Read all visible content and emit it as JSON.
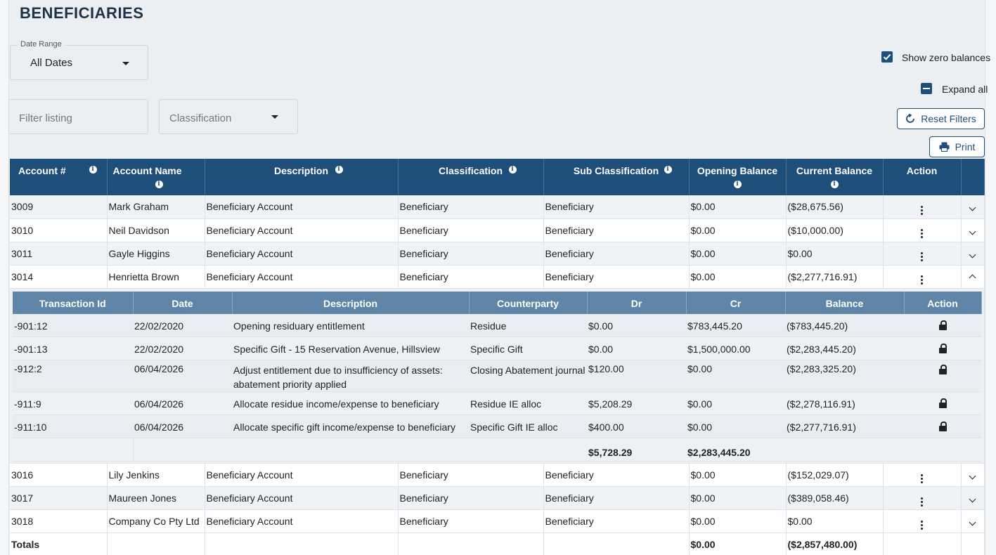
{
  "page": {
    "title": "BENEFICIARIES"
  },
  "filters": {
    "date_range_label": "Date Range",
    "date_range_value": "All Dates",
    "filter_placeholder": "Filter listing",
    "classification_placeholder": "Classification",
    "show_zero_balances": "Show zero balances",
    "expand_all": "Expand all",
    "reset_filters": "Reset Filters",
    "print": "Print"
  },
  "columns": [
    "Account #",
    "Account Name",
    "Description",
    "Classification",
    "Sub Classification",
    "Opening Balance",
    "Current Balance",
    "Action"
  ],
  "rows": [
    {
      "account": "3009",
      "name": "Mark Graham",
      "description": "Beneficiary Account",
      "classification": "Beneficiary",
      "sub": "Beneficiary",
      "opening": "$0.00",
      "current": "($28,675.56)"
    },
    {
      "account": "3010",
      "name": "Neil Davidson",
      "description": "Beneficiary Account",
      "classification": "Beneficiary",
      "sub": "Beneficiary",
      "opening": "$0.00",
      "current": "($10,000.00)"
    },
    {
      "account": "3011",
      "name": "Gayle Higgins",
      "description": "Beneficiary Account",
      "classification": "Beneficiary",
      "sub": "Beneficiary",
      "opening": "$0.00",
      "current": "$0.00"
    },
    {
      "account": "3014",
      "name": "Henrietta Brown",
      "description": "Beneficiary Account",
      "classification": "Beneficiary",
      "sub": "Beneficiary",
      "opening": "$0.00",
      "current": "($2,277,716.91)"
    },
    {
      "account": "3016",
      "name": "Lily Jenkins",
      "description": "Beneficiary Account",
      "classification": "Beneficiary",
      "sub": "Beneficiary",
      "opening": "$0.00",
      "current": "($152,029.07)"
    },
    {
      "account": "3017",
      "name": "Maureen Jones",
      "description": "Beneficiary Account",
      "classification": "Beneficiary",
      "sub": "Beneficiary",
      "opening": "$0.00",
      "current": "($389,058.46)"
    },
    {
      "account": "3018",
      "name": "Company Co Pty Ltd",
      "description": "Beneficiary Account",
      "classification": "Beneficiary",
      "sub": "Beneficiary",
      "opening": "$0.00",
      "current": "$0.00"
    }
  ],
  "detail": {
    "columns": [
      "Transaction Id",
      "Date",
      "Description",
      "Counterparty",
      "Dr",
      "Cr",
      "Balance",
      "Action"
    ],
    "rows": [
      {
        "id": "-901:12",
        "date": "22/02/2020",
        "description": "Opening residuary entitlement",
        "counterparty": "Residue",
        "dr": "$0.00",
        "cr": "$783,445.20",
        "balance": "($783,445.20)"
      },
      {
        "id": "-901:13",
        "date": "22/02/2020",
        "description": "Specific Gift - 15 Reservation Avenue, Hillsview",
        "counterparty": "Specific Gift",
        "dr": "$0.00",
        "cr": "$1,500,000.00",
        "balance": "($2,283,445.20)"
      },
      {
        "id": "-912:2",
        "date": "06/04/2026",
        "description": "Adjust entitlement due to insufficiency of assets: abatement priority applied",
        "counterparty": "Closing Abatement journal",
        "dr": "$120.00",
        "cr": "$0.00",
        "balance": "($2,283,325.20)"
      },
      {
        "id": "-911:9",
        "date": "06/04/2026",
        "description": "Allocate residue income/expense to beneficiary",
        "counterparty": "Residue IE alloc",
        "dr": "$5,208.29",
        "cr": "$0.00",
        "balance": "($2,278,116.91)"
      },
      {
        "id": "-911:10",
        "date": "06/04/2026",
        "description": "Allocate specific gift income/expense to beneficiary",
        "counterparty": "Specific Gift IE alloc",
        "dr": "$400.00",
        "cr": "$0.00",
        "balance": "($2,277,716.91)"
      }
    ],
    "total_dr": "$5,728.29",
    "total_cr": "$2,283,445.20"
  },
  "totals": {
    "label": "Totals",
    "opening": "$0.00",
    "current": "($2,857,480.00)"
  },
  "colors": {
    "header": "#1d4f7a",
    "subheader": "#5f86a8"
  }
}
